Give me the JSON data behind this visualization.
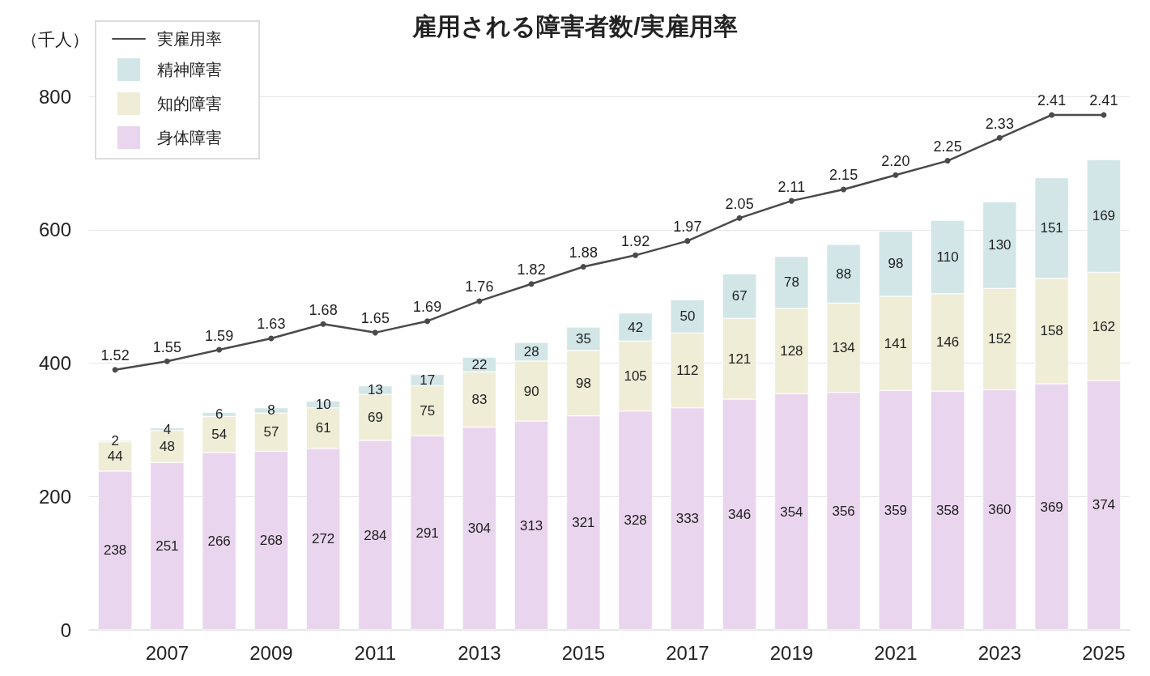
{
  "chart_data": {
    "type": "bar",
    "title": "雇用される障害者数/実雇用率",
    "ylabel": "（千人）",
    "categories": [
      null,
      "2007",
      null,
      "2009",
      null,
      "2011",
      null,
      "2013",
      null,
      "2015",
      null,
      "2017",
      null,
      "2019",
      null,
      "2021",
      null,
      "2023",
      null,
      "2025"
    ],
    "stacked": true,
    "series": [
      {
        "name": "身体障害",
        "color": "#ead5ee",
        "values": [
          238,
          251,
          266,
          268,
          272,
          284,
          291,
          304,
          313,
          321,
          328,
          333,
          346,
          354,
          356,
          359,
          358,
          360,
          369,
          374
        ]
      },
      {
        "name": "知的障害",
        "color": "#efedd6",
        "values": [
          44,
          48,
          54,
          57,
          61,
          69,
          75,
          83,
          90,
          98,
          105,
          112,
          121,
          128,
          134,
          141,
          146,
          152,
          158,
          162
        ]
      },
      {
        "name": "精神障害",
        "color": "#d2e6e7",
        "values": [
          2,
          4,
          6,
          8,
          10,
          13,
          17,
          22,
          28,
          35,
          42,
          50,
          67,
          78,
          88,
          98,
          110,
          130,
          151,
          169
        ]
      },
      {
        "name": "実雇用率",
        "type": "line",
        "axis": "y2",
        "color": "#4a4a4a",
        "values": [
          1.52,
          1.55,
          1.59,
          1.63,
          1.68,
          1.65,
          1.69,
          1.76,
          1.82,
          1.88,
          1.92,
          1.97,
          2.05,
          2.11,
          2.15,
          2.2,
          2.25,
          2.33,
          2.41,
          2.41
        ],
        "value_labels": [
          "1.52",
          "1.55",
          "1.59",
          "1.63",
          "1.68",
          "1.65",
          "1.69",
          "1.76",
          "1.82",
          "1.88",
          "1.92",
          "1.97",
          "2.05",
          "2.11",
          "2.15",
          "2.20",
          "2.25",
          "2.33",
          "2.41",
          "2.41"
        ]
      }
    ],
    "ylim": [
      0,
      800
    ],
    "yticks": [
      0,
      200,
      400,
      600,
      800
    ],
    "grid": "y",
    "legend": "top left",
    "data_labels": true,
    "marker": "circle",
    "line_style": "solid"
  }
}
